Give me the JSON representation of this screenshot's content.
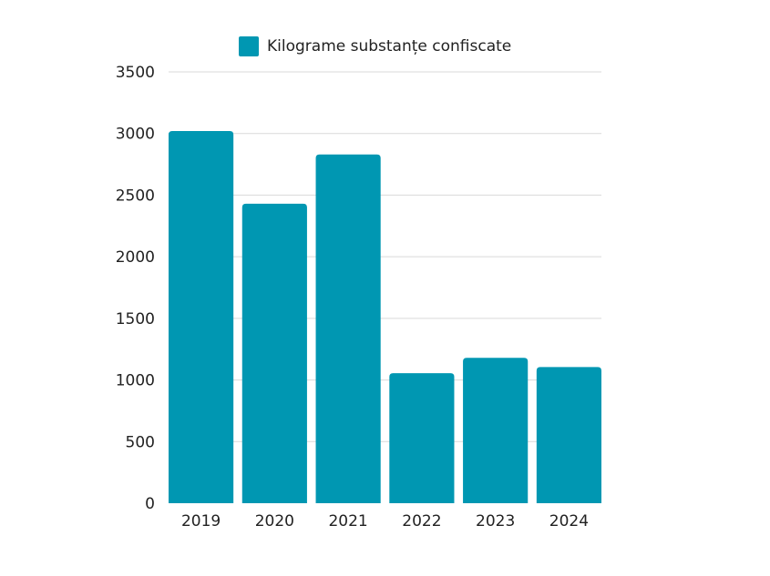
{
  "chart_data": {
    "type": "bar",
    "title": "",
    "xlabel": "",
    "ylabel": "",
    "categories": [
      "2019",
      "2020",
      "2021",
      "2022",
      "2023",
      "2024"
    ],
    "series": [
      {
        "name": "Kilograme substanțe confiscate",
        "values": [
          3020,
          2430,
          2830,
          1055,
          1180,
          1105
        ],
        "color": "#0097b2"
      }
    ],
    "ylim": [
      0,
      3500
    ],
    "yticks": [
      0,
      500,
      1000,
      1500,
      2000,
      2500,
      3000,
      3500
    ],
    "grid": true,
    "legend_position": "top"
  }
}
